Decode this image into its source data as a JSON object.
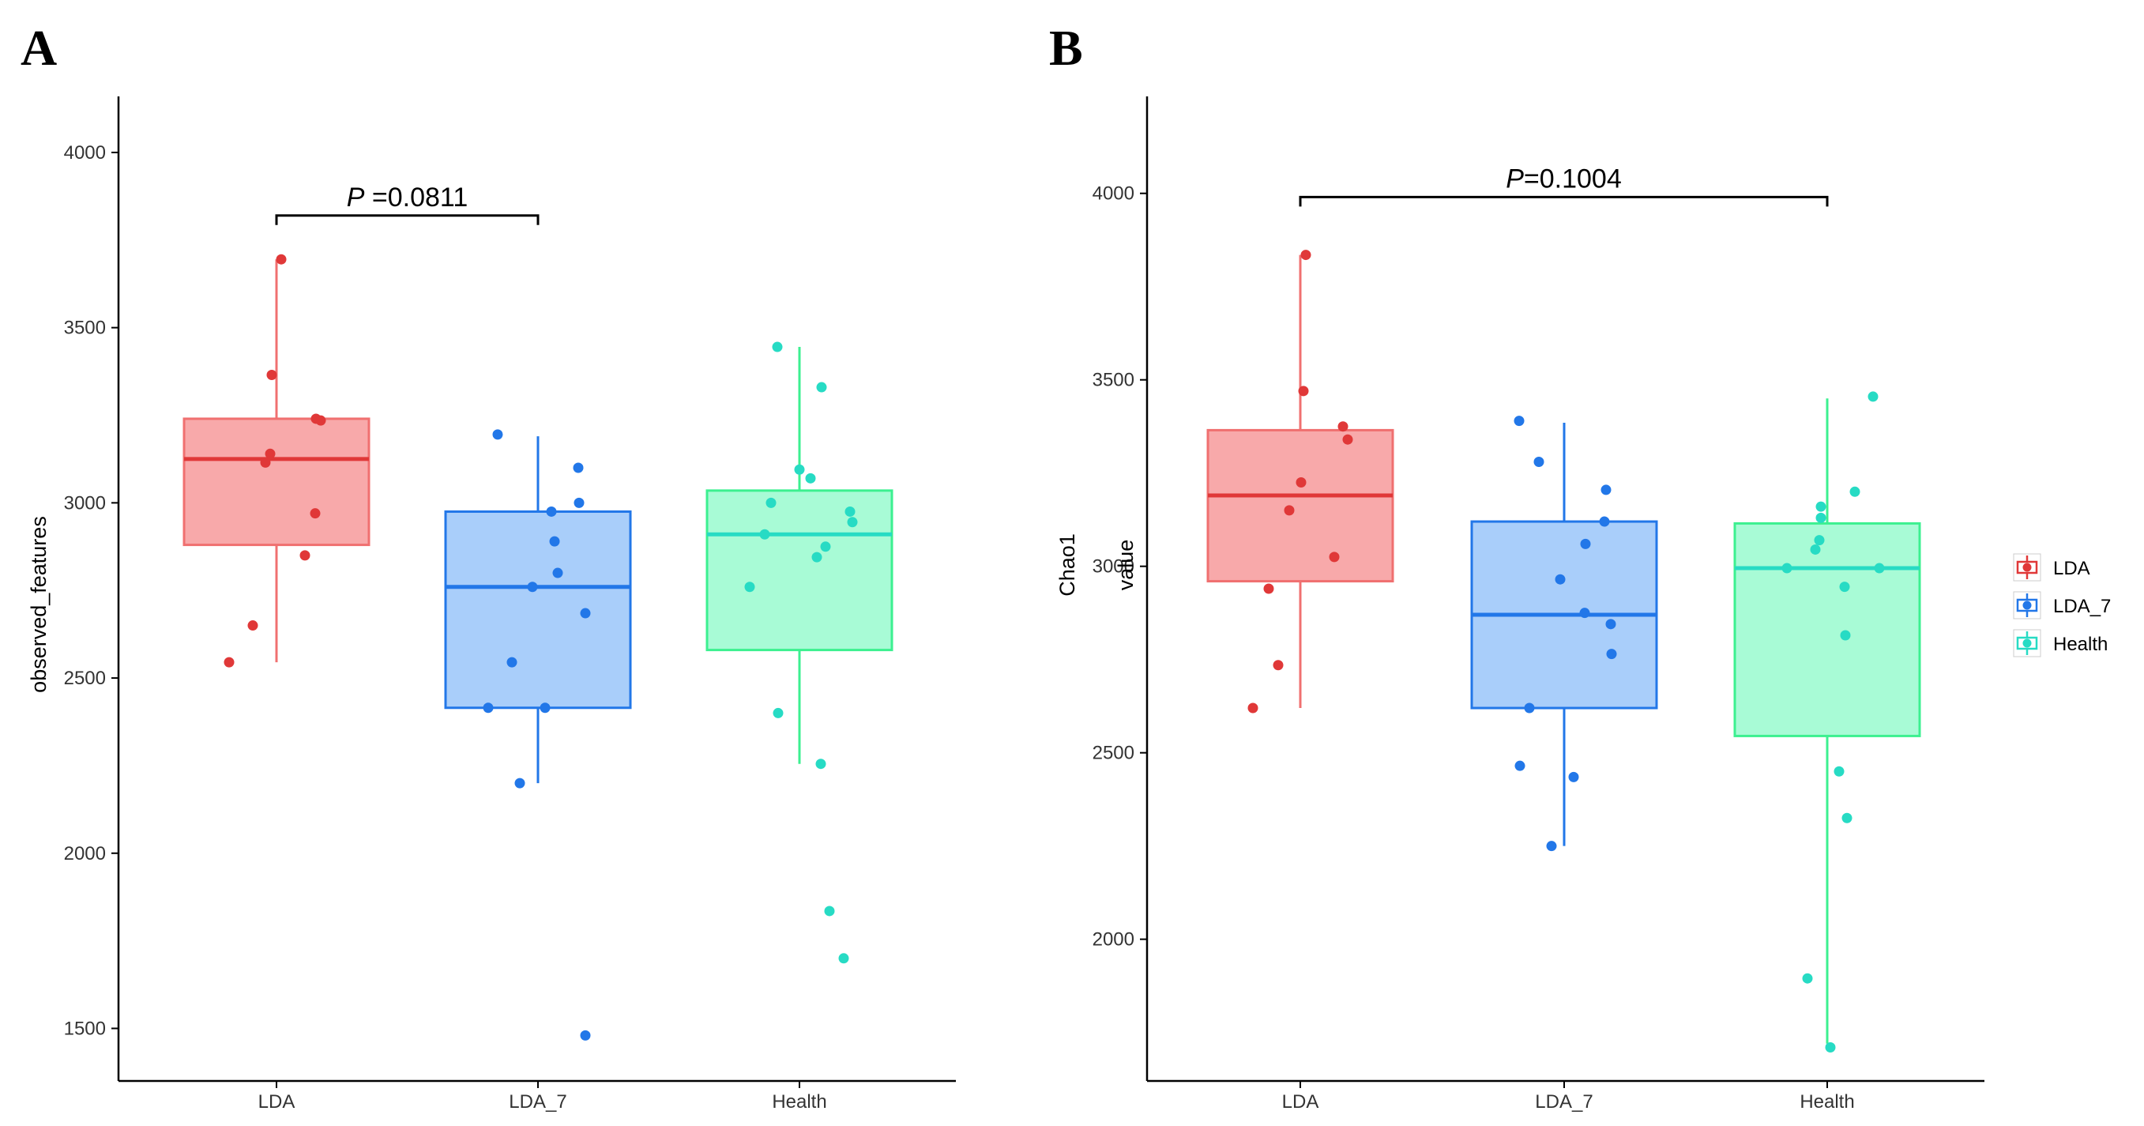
{
  "chart_data": [
    {
      "type": "box",
      "panel": "A",
      "ylabel": "observed_features",
      "xlabel": "",
      "ylim": [
        1350,
        4160
      ],
      "yticks": [
        1500,
        2000,
        2500,
        3000,
        3500,
        4000
      ],
      "categories": [
        "LDA",
        "LDA_7",
        "Health"
      ],
      "colors": {
        "LDA": "#e03838",
        "LDA_7": "#2277e8",
        "Health": "#27dbc4"
      },
      "box_fills": {
        "LDA": "#f8a9aa",
        "LDA_7": "#a9cefa",
        "Health": "#a8fbd6"
      },
      "box_borders": {
        "LDA": "#f07070",
        "LDA_7": "#2277e8",
        "Health": "#3cf090"
      },
      "series": [
        {
          "name": "LDA",
          "q1": 2880,
          "median": 3125,
          "q3": 3240,
          "whisker_low": 2545,
          "whisker_high": 3695,
          "points": [
            3695,
            3365,
            3240,
            3235,
            3140,
            3115,
            2970,
            2850,
            2650,
            2545
          ]
        },
        {
          "name": "LDA_7",
          "q1": 2415,
          "median": 2760,
          "q3": 2975,
          "whisker_low": 2200,
          "whisker_high": 3190,
          "points": [
            3195,
            3100,
            3000,
            2975,
            2890,
            2800,
            2760,
            2685,
            2545,
            2415,
            2415,
            2200,
            1480
          ]
        },
        {
          "name": "Health",
          "q1": 2580,
          "median": 2910,
          "q3": 3035,
          "whisker_low": 2255,
          "whisker_high": 3445,
          "points": [
            3445,
            3330,
            3095,
            3070,
            3000,
            2975,
            2945,
            2910,
            2875,
            2845,
            2760,
            2400,
            2255,
            1835,
            1700
          ]
        }
      ],
      "annotation": {
        "label_italic": "P",
        "label_rest": " =0.0811",
        "from": "LDA",
        "to": "LDA_7",
        "y": 3820
      }
    },
    {
      "type": "box",
      "panel": "B",
      "ylabel_lines": [
        "Chao1",
        "value"
      ],
      "xlabel": "",
      "ylim": [
        1620,
        4260
      ],
      "yticks": [
        2000,
        2500,
        3000,
        3500,
        4000
      ],
      "categories": [
        "LDA",
        "LDA_7",
        "Health"
      ],
      "colors": {
        "LDA": "#e03838",
        "LDA_7": "#2277e8",
        "Health": "#27dbc4"
      },
      "box_fills": {
        "LDA": "#f8a9aa",
        "LDA_7": "#a9cefa",
        "Health": "#a8fbd6"
      },
      "box_borders": {
        "LDA": "#f07070",
        "LDA_7": "#2277e8",
        "Health": "#3cf090"
      },
      "series": [
        {
          "name": "LDA",
          "q1": 2960,
          "median": 3190,
          "q3": 3365,
          "whisker_low": 2620,
          "whisker_high": 3835,
          "points": [
            3835,
            3470,
            3375,
            3340,
            3225,
            3150,
            3025,
            2940,
            2735,
            2620
          ]
        },
        {
          "name": "LDA_7",
          "q1": 2620,
          "median": 2870,
          "q3": 3120,
          "whisker_low": 2250,
          "whisker_high": 3385,
          "points": [
            3390,
            3280,
            3205,
            3120,
            3060,
            2965,
            2875,
            2845,
            2765,
            2620,
            2465,
            2435,
            2250
          ]
        },
        {
          "name": "Health",
          "q1": 2545,
          "median": 2995,
          "q3": 3115,
          "whisker_low": 1720,
          "whisker_high": 3450,
          "points": [
            3455,
            3200,
            3160,
            3130,
            3070,
            3045,
            2995,
            2995,
            2945,
            2815,
            2450,
            2325,
            1895,
            1710
          ]
        }
      ],
      "annotation": {
        "label_italic": "P",
        "label_rest": "=0.1004",
        "from": "LDA",
        "to": "Health",
        "y": 3990
      }
    }
  ],
  "legend": {
    "items": [
      {
        "label": "LDA",
        "color": "#e03838"
      },
      {
        "label": "LDA_7",
        "color": "#2277e8"
      },
      {
        "label": "Health",
        "color": "#27dbc4"
      }
    ]
  }
}
